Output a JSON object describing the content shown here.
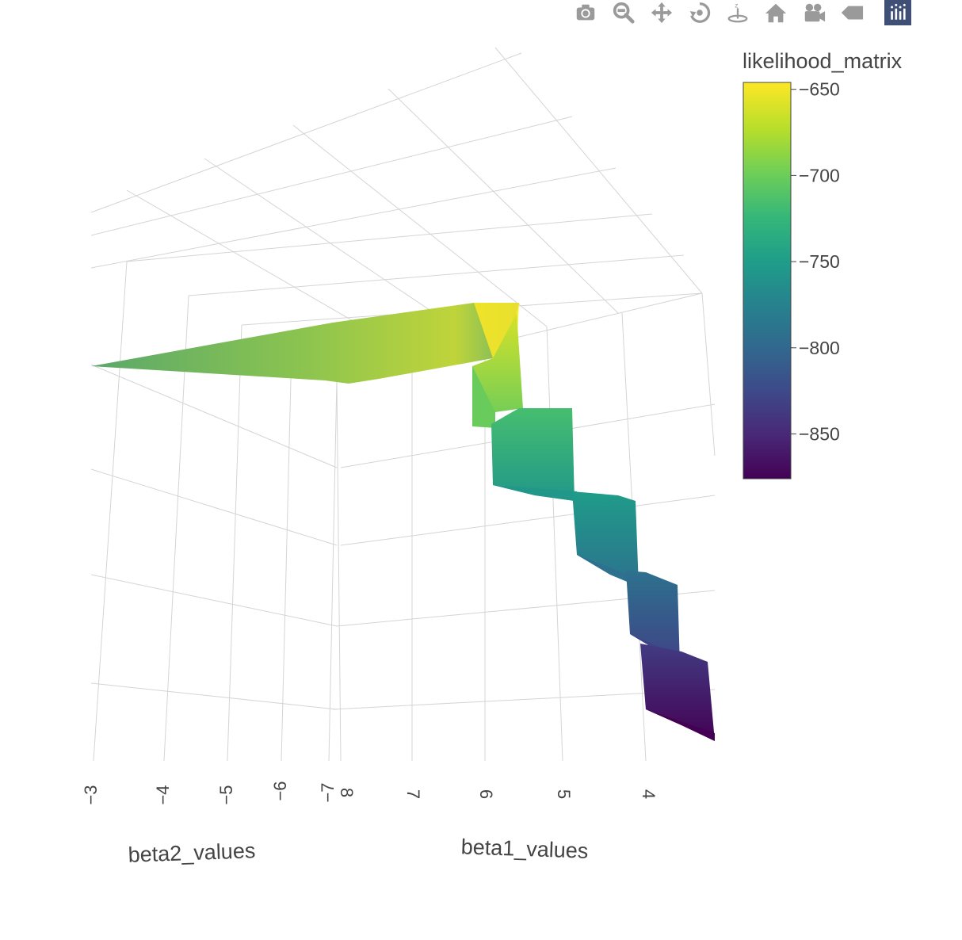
{
  "toolbar": {
    "buttons": [
      {
        "name": "camera-icon",
        "label": "Download plot as a png"
      },
      {
        "name": "zoom-icon",
        "label": "Zoom"
      },
      {
        "name": "pan-icon",
        "label": "Pan"
      },
      {
        "name": "orbit-rotation-icon",
        "label": "Orbital rotation"
      },
      {
        "name": "turntable-rotation-icon",
        "label": "Turntable rotation"
      },
      {
        "name": "home-icon",
        "label": "Reset camera to default"
      },
      {
        "name": "video-camera-icon",
        "label": "Reset camera to last save"
      },
      {
        "name": "hover-tag-icon",
        "label": "Toggle show closest data on hover"
      }
    ],
    "logo": "plotly-logo-icon",
    "color": "#9a9a9a",
    "logo_bg": "#3f4f75"
  },
  "chart_data": {
    "type": "surface",
    "xlabel": "beta1_values",
    "ylabel": "beta2_values",
    "zlabel": "",
    "x_ticks": [
      "8",
      "7",
      "6",
      "5",
      "4"
    ],
    "y_ticks": [
      "−3",
      "−4",
      "−5",
      "−6",
      "−7"
    ],
    "colorbar": {
      "title": "likelihood_matrix",
      "ticks": [
        "−650",
        "−700",
        "−750",
        "−800",
        "−850"
      ],
      "tick_values": [
        -650,
        -700,
        -750,
        -800,
        -850
      ],
      "range": [
        -876,
        -646
      ],
      "colorscale": "viridis",
      "colors": [
        "#440154",
        "#482878",
        "#3e4989",
        "#31688e",
        "#26828e",
        "#1f9e89",
        "#35b779",
        "#6ece58",
        "#b5de2b",
        "#fde725"
      ]
    },
    "surface": {
      "description_note": "",
      "steps": [
        {
          "beta1": 6.3,
          "z_top": -660,
          "z_bottom": -700
        },
        {
          "beta1": 5.6,
          "z_top": -715,
          "z_bottom": -755
        },
        {
          "beta1": 5.0,
          "z_top": -750,
          "z_bottom": -790
        },
        {
          "beta1": 4.5,
          "z_top": -790,
          "z_bottom": -830
        },
        {
          "beta1": 4.1,
          "z_top": -835,
          "z_bottom": -876
        }
      ],
      "ridge_max": -648
    },
    "grid": true,
    "legend_position": "right"
  }
}
